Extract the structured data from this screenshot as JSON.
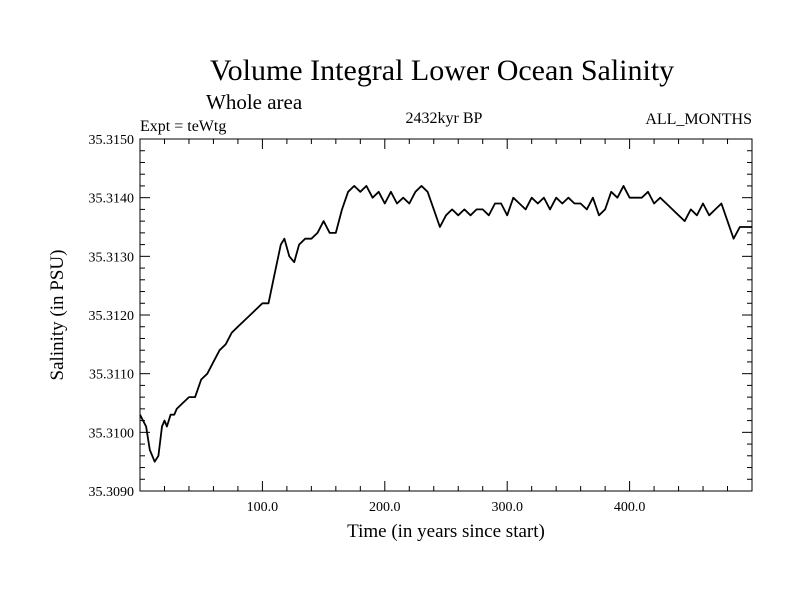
{
  "chart_data": {
    "type": "line",
    "title": "Volume Integral Lower Ocean Salinity",
    "subtitle": "Whole area",
    "left_label": "Expt = teWtg",
    "center_label": "2432kyr BP",
    "right_label": "ALL_MONTHS",
    "xlabel": "Time (in years since start)",
    "ylabel": "Salinity (in PSU)",
    "xlim": [
      0,
      500
    ],
    "ylim": [
      35.309,
      35.315
    ],
    "x_ticks": [
      {
        "value": 100,
        "label": "100.0"
      },
      {
        "value": 200,
        "label": "200.0"
      },
      {
        "value": 300,
        "label": "300.0"
      },
      {
        "value": 400,
        "label": "400.0"
      }
    ],
    "y_ticks": [
      {
        "value": 35.309,
        "label": "35.3090"
      },
      {
        "value": 35.31,
        "label": "35.3100"
      },
      {
        "value": 35.311,
        "label": "35.3110"
      },
      {
        "value": 35.312,
        "label": "35.3120"
      },
      {
        "value": 35.313,
        "label": "35.3130"
      },
      {
        "value": 35.314,
        "label": "35.3140"
      },
      {
        "value": 35.315,
        "label": "35.3150"
      }
    ],
    "series": [
      {
        "name": "salinity",
        "color": "#000000",
        "x": [
          0,
          5,
          8,
          12,
          15,
          18,
          20,
          22,
          25,
          28,
          30,
          35,
          40,
          45,
          50,
          55,
          60,
          65,
          70,
          75,
          80,
          85,
          90,
          95,
          100,
          105,
          110,
          115,
          118,
          122,
          126,
          130,
          135,
          140,
          145,
          150,
          155,
          160,
          165,
          170,
          175,
          180,
          185,
          190,
          195,
          200,
          205,
          210,
          215,
          220,
          225,
          230,
          235,
          240,
          245,
          250,
          255,
          260,
          265,
          270,
          275,
          280,
          285,
          290,
          295,
          300,
          305,
          310,
          315,
          320,
          325,
          330,
          335,
          340,
          345,
          350,
          355,
          360,
          365,
          370,
          375,
          380,
          385,
          390,
          395,
          400,
          405,
          410,
          415,
          420,
          425,
          430,
          435,
          440,
          445,
          450,
          455,
          460,
          465,
          470,
          475,
          480,
          485,
          490,
          495,
          500
        ],
        "y": [
          35.3103,
          35.3101,
          35.3097,
          35.3095,
          35.3096,
          35.3101,
          35.3102,
          35.3101,
          35.3103,
          35.3103,
          35.3104,
          35.3105,
          35.3106,
          35.3106,
          35.3109,
          35.311,
          35.3112,
          35.3114,
          35.3115,
          35.3117,
          35.3118,
          35.3119,
          35.312,
          35.3121,
          35.3122,
          35.3122,
          35.3127,
          35.3132,
          35.3133,
          35.313,
          35.3129,
          35.3132,
          35.3133,
          35.3133,
          35.3134,
          35.3136,
          35.3134,
          35.3134,
          35.3138,
          35.3141,
          35.3142,
          35.3141,
          35.3142,
          35.314,
          35.3141,
          35.3139,
          35.3141,
          35.3139,
          35.314,
          35.3139,
          35.3141,
          35.3142,
          35.3141,
          35.3138,
          35.3135,
          35.3137,
          35.3138,
          35.3137,
          35.3138,
          35.3137,
          35.3138,
          35.3138,
          35.3137,
          35.3139,
          35.3139,
          35.3137,
          35.314,
          35.3139,
          35.3138,
          35.314,
          35.3139,
          35.314,
          35.3138,
          35.314,
          35.3139,
          35.314,
          35.3139,
          35.3139,
          35.3138,
          35.314,
          35.3137,
          35.3138,
          35.3141,
          35.314,
          35.3142,
          35.314,
          35.314,
          35.314,
          35.3141,
          35.3139,
          35.314,
          35.3139,
          35.3138,
          35.3137,
          35.3136,
          35.3138,
          35.3137,
          35.3139,
          35.3137,
          35.3138,
          35.3139,
          35.3136,
          35.3133,
          35.3135,
          35.3135,
          35.3135
        ]
      }
    ]
  }
}
